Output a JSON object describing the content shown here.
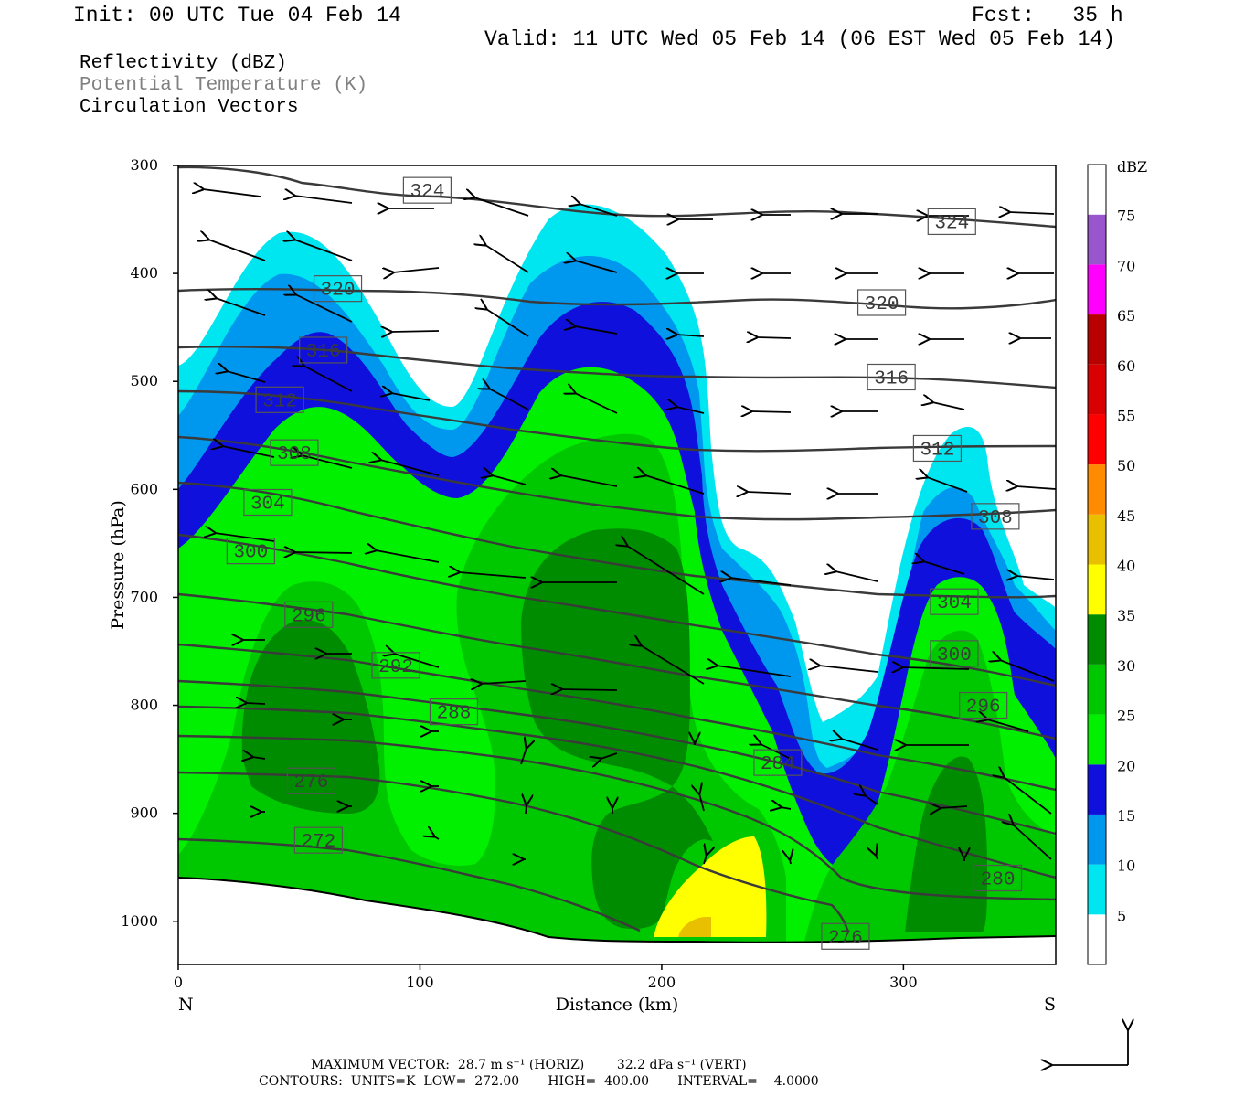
{
  "header": {
    "init": "Init: 00 UTC Tue 04 Feb 14",
    "fcst": "Fcst:   35 h",
    "valid": "Valid: 11 UTC Wed 05 Feb 14 (06 EST Wed 05 Feb 14)"
  },
  "fields": [
    {
      "label": "Reflectivity (dBZ)",
      "color": "#000000"
    },
    {
      "label": "Potential Temperature (K)",
      "color": "#808080"
    },
    {
      "label": "Circulation Vectors",
      "color": "#000000"
    }
  ],
  "footer": {
    "line1": "MAXIMUM VECTOR:  28.7 m s⁻¹ (HORIZ)        32.2 dPa s⁻¹ (VERT)",
    "line2": "CONTOURS:  UNITS=K  LOW=  272.00       HIGH=  400.00       INTERVAL=    4.0000"
  },
  "chart_data": {
    "type": "heatmap",
    "title": "",
    "xlabel": "Distance (km)",
    "ylabel": "Pressure (hPa)",
    "xlim": [
      0,
      363
    ],
    "ylim": [
      1040,
      300
    ],
    "x_ticks": [
      0,
      100,
      200,
      300
    ],
    "y_ticks": [
      300,
      400,
      500,
      600,
      700,
      800,
      900,
      1000
    ],
    "x_end_labels": {
      "left": "N",
      "right": "S"
    },
    "colorbar": {
      "title": "dBZ",
      "levels": [
        5,
        10,
        15,
        20,
        25,
        30,
        35,
        40,
        45,
        50,
        55,
        60,
        65,
        70,
        75
      ],
      "colors": [
        "#ffffff",
        "#00e6f0",
        "#0097ee",
        "#1010dd",
        "#00f000",
        "#00c800",
        "#008c00",
        "#ffff00",
        "#e8c000",
        "#ff8c00",
        "#ff0000",
        "#d80000",
        "#b80000",
        "#ff00ff",
        "#9955cc",
        "#ffffff"
      ]
    },
    "reflectivity_echoes": [
      {
        "name": "northern echo",
        "max_dbz": 30,
        "x_range": [
          0,
          145
        ],
        "top_hPa": 355
      },
      {
        "name": "central echo",
        "max_dbz": 40,
        "x_range": [
          140,
          270
        ],
        "top_hPa": 345
      },
      {
        "name": "southern echo",
        "max_dbz": 30,
        "x_range": [
          265,
          363
        ],
        "top_hPa": 545
      }
    ],
    "theta_contours": {
      "units": "K",
      "low": 272,
      "high": 400,
      "interval": 4,
      "labels": [
        {
          "value": 324,
          "x": 103,
          "p": 323
        },
        {
          "value": 324,
          "x": 320,
          "p": 352
        },
        {
          "value": 320,
          "x": 66,
          "p": 414
        },
        {
          "value": 320,
          "x": 291,
          "p": 427
        },
        {
          "value": 316,
          "x": 60,
          "p": 471
        },
        {
          "value": 316,
          "x": 295,
          "p": 496
        },
        {
          "value": 312,
          "x": 42,
          "p": 517
        },
        {
          "value": 312,
          "x": 314,
          "p": 562
        },
        {
          "value": 308,
          "x": 48,
          "p": 566
        },
        {
          "value": 308,
          "x": 338,
          "p": 625
        },
        {
          "value": 304,
          "x": 37,
          "p": 612
        },
        {
          "value": 304,
          "x": 321,
          "p": 704
        },
        {
          "value": 300,
          "x": 30,
          "p": 657
        },
        {
          "value": 300,
          "x": 321,
          "p": 752
        },
        {
          "value": 296,
          "x": 54,
          "p": 716
        },
        {
          "value": 296,
          "x": 333,
          "p": 800
        },
        {
          "value": 292,
          "x": 90,
          "p": 763
        },
        {
          "value": 288,
          "x": 114,
          "p": 806
        },
        {
          "value": 284,
          "x": 248,
          "p": 853
        },
        {
          "value": 280,
          "x": 339,
          "p": 960
        },
        {
          "value": 276,
          "x": 55,
          "p": 870
        },
        {
          "value": 276,
          "x": 276,
          "p": 1014
        },
        {
          "value": 272,
          "x": 58,
          "p": 925
        }
      ]
    }
  }
}
